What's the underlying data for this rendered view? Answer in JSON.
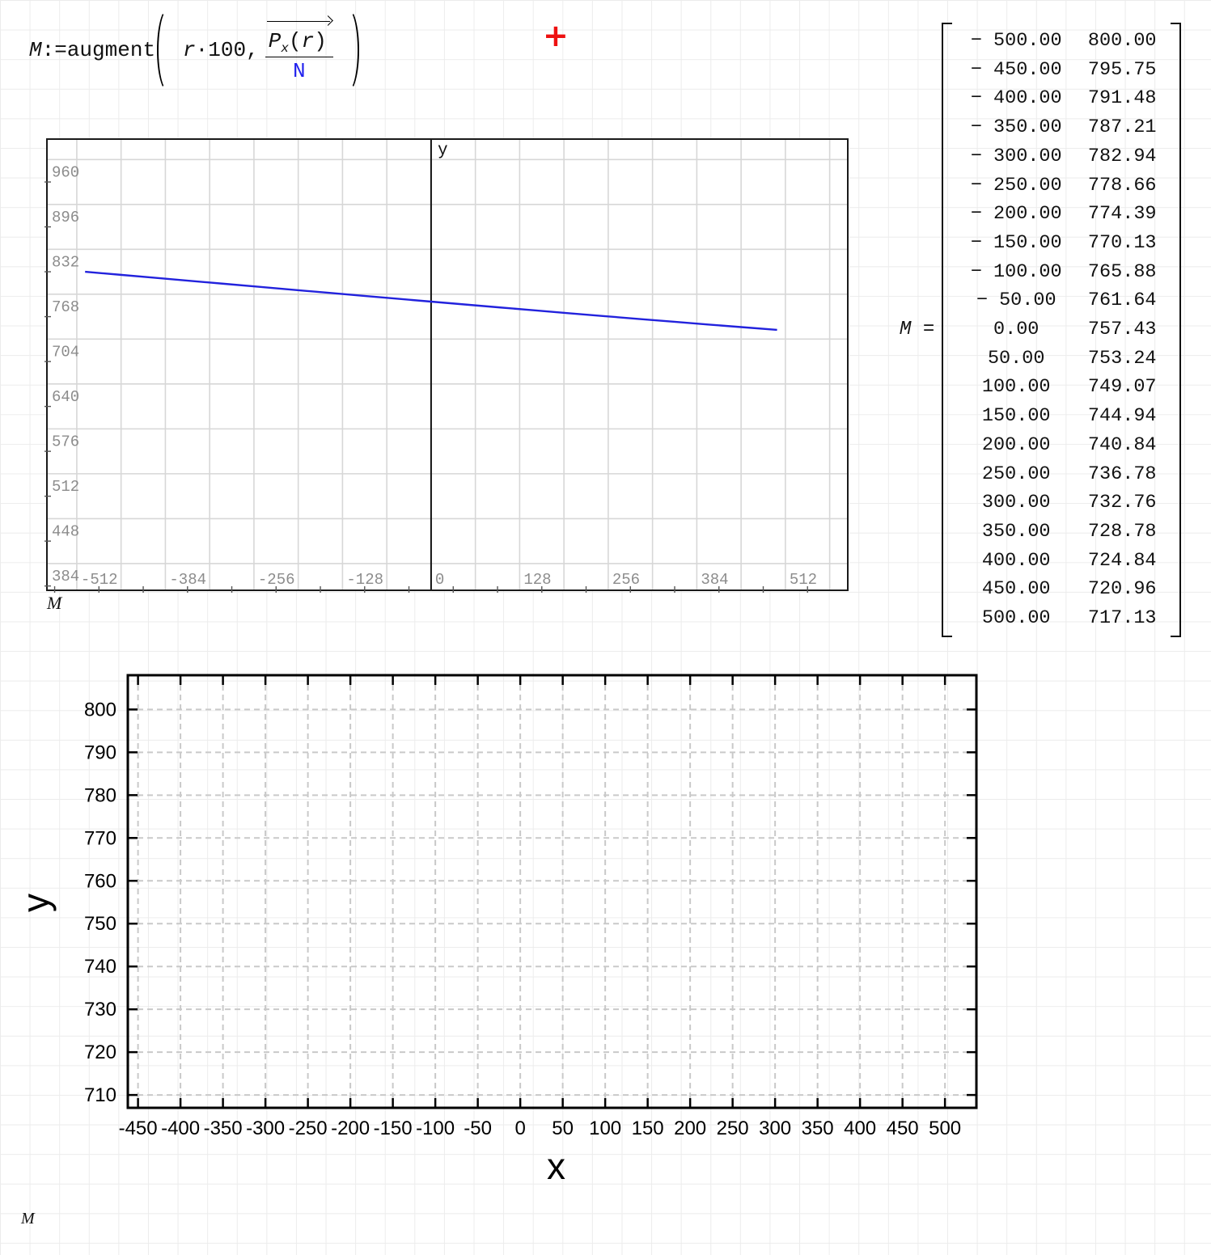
{
  "formula": {
    "lhs": "M",
    "assign": ":=",
    "func": "augment",
    "arg1_var": "r",
    "dot": "·",
    "factor": "100",
    "comma": ",",
    "num_base": "P",
    "num_sub": "x",
    "num_open": "(",
    "num_arg": "r",
    "num_close": ")",
    "den": "N"
  },
  "cursor_plus": "+",
  "top_plot": {
    "axis_label_y": "y",
    "arg_label": "M"
  },
  "matrix": {
    "name": "M",
    "equals": "=",
    "rows": [
      [
        "− 500.00",
        "800.00"
      ],
      [
        "− 450.00",
        "795.75"
      ],
      [
        "− 400.00",
        "791.48"
      ],
      [
        "− 350.00",
        "787.21"
      ],
      [
        "− 300.00",
        "782.94"
      ],
      [
        "− 250.00",
        "778.66"
      ],
      [
        "− 200.00",
        "774.39"
      ],
      [
        "− 150.00",
        "770.13"
      ],
      [
        "− 100.00",
        "765.88"
      ],
      [
        "− 50.00",
        "761.64"
      ],
      [
        "0.00",
        "757.43"
      ],
      [
        "50.00",
        "753.24"
      ],
      [
        "100.00",
        "749.07"
      ],
      [
        "150.00",
        "744.94"
      ],
      [
        "200.00",
        "740.84"
      ],
      [
        "250.00",
        "736.78"
      ],
      [
        "300.00",
        "732.76"
      ],
      [
        "350.00",
        "728.78"
      ],
      [
        "400.00",
        "724.84"
      ],
      [
        "450.00",
        "720.96"
      ],
      [
        "500.00",
        "717.13"
      ]
    ]
  },
  "bottom_plot": {
    "arg_label": "M"
  },
  "colors": {
    "trace_blue": "#2222dd",
    "denominator_blue": "#2222ee",
    "cursor_red": "#ee1111",
    "tick_gray": "#8c8c8c",
    "grid_gray": "#d7d7d7",
    "dashed_grid_gray": "#c9c9c9"
  },
  "chart_data": [
    {
      "type": "line",
      "title": "",
      "xlabel": "M",
      "ylabel": "y",
      "x": [
        -500,
        -450,
        -400,
        -350,
        -300,
        -250,
        -200,
        -150,
        -100,
        -50,
        0,
        50,
        100,
        150,
        200,
        250,
        300,
        350,
        400,
        450,
        500
      ],
      "series": [
        {
          "name": "y",
          "color": "#2222dd",
          "y": [
            800.0,
            795.75,
            791.48,
            787.21,
            782.94,
            778.66,
            774.39,
            770.13,
            765.88,
            761.64,
            757.43,
            753.24,
            749.07,
            744.94,
            740.84,
            736.78,
            732.76,
            728.78,
            724.84,
            720.96,
            717.13
          ]
        }
      ],
      "xlim": [
        -554,
        601
      ],
      "ylim": [
        347,
        988
      ],
      "x_grid_start": -512,
      "x_grid_end": 576,
      "x_grid_step": 64,
      "y_grid_start": 384,
      "y_grid_end": 960,
      "y_grid_step": 64,
      "x_label_ticks": [
        -512,
        -384,
        -256,
        -128,
        0,
        128,
        256,
        384,
        512
      ],
      "y_label_ticks": [
        960,
        896,
        832,
        768,
        704,
        640,
        576,
        512,
        448,
        384
      ],
      "grid": true,
      "zero_axis_line": true,
      "legend": "none"
    },
    {
      "type": "line",
      "title": "",
      "xlabel": "x",
      "ylabel": "y",
      "x_ticks": [
        -450,
        -400,
        -350,
        -300,
        -250,
        -200,
        -150,
        -100,
        -50,
        0,
        50,
        100,
        150,
        200,
        250,
        300,
        350,
        400,
        450,
        500
      ],
      "y_ticks": [
        800,
        790,
        780,
        770,
        760,
        750,
        740,
        730,
        720,
        710
      ],
      "xlim": [
        -462,
        537
      ],
      "ylim": [
        707,
        808
      ],
      "series": [],
      "grid": "dashed",
      "legend": "none"
    }
  ]
}
